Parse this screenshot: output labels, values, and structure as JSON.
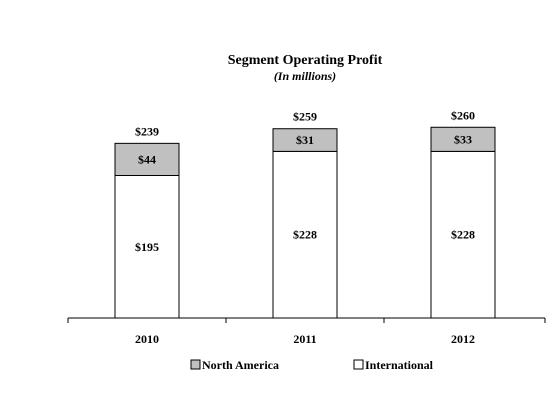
{
  "chart_data": {
    "type": "bar",
    "stacked": true,
    "title": "Segment Operating Profit",
    "subtitle": "(In millions)",
    "categories": [
      "2010",
      "2011",
      "2012"
    ],
    "series": [
      {
        "name": "International",
        "values": [
          195,
          228,
          228
        ],
        "value_labels": [
          "$195",
          "$228",
          "$228"
        ],
        "color": "#ffffff"
      },
      {
        "name": "North America",
        "values": [
          44,
          31,
          33
        ],
        "value_labels": [
          "$44",
          "$31",
          "$33"
        ],
        "color": "#c0c0c0"
      }
    ],
    "totals": [
      239,
      259,
      260
    ],
    "total_labels": [
      "$239",
      "$259",
      "$260"
    ],
    "ylim": [
      0,
      260
    ],
    "grid": false,
    "legend": {
      "position": "bottom",
      "items": [
        {
          "label": "North America",
          "color": "#c0c0c0"
        },
        {
          "label": "International",
          "color": "#ffffff"
        }
      ]
    }
  }
}
